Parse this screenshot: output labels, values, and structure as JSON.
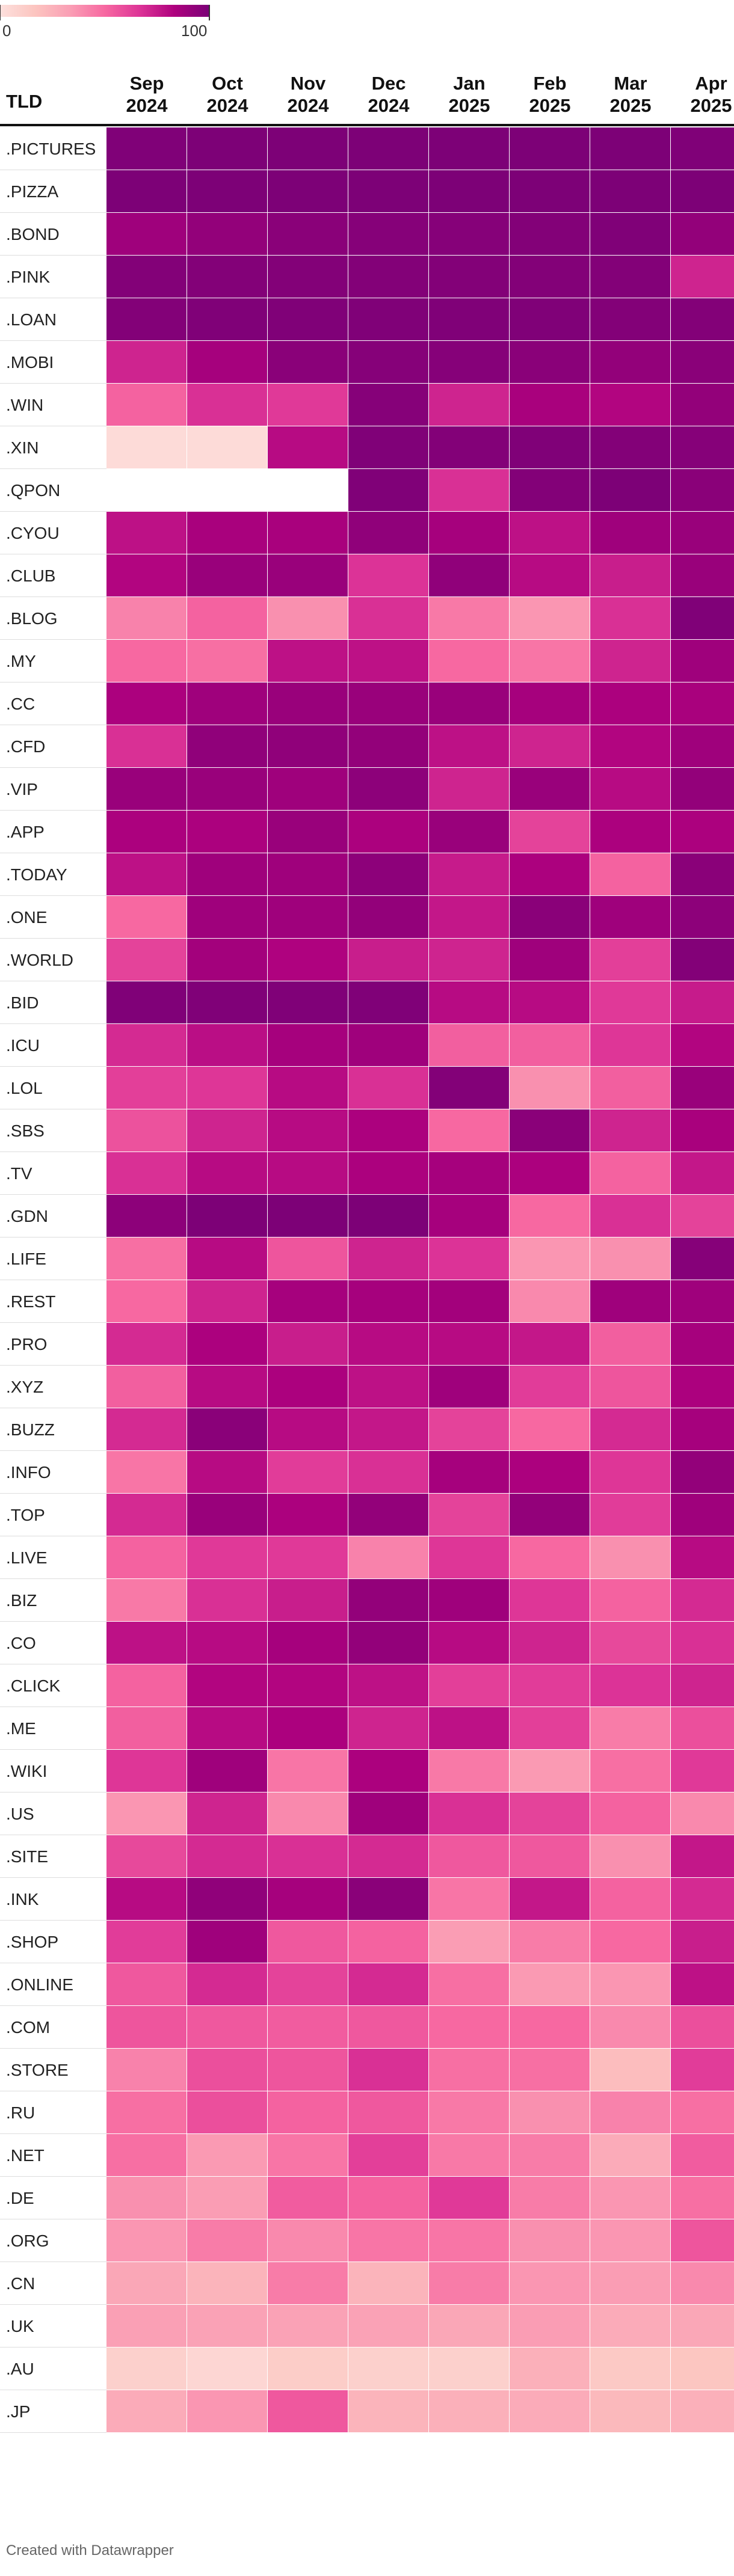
{
  "chart_data": {
    "type": "heatmap",
    "row_header": "TLD",
    "x": [
      "Sep 2024",
      "Oct 2024",
      "Nov 2024",
      "Dec 2024",
      "Jan 2025",
      "Feb 2025",
      "Mar 2025",
      "Apr 2025"
    ],
    "categories": [
      ".PICTURES",
      ".PIZZA",
      ".BOND",
      ".PINK",
      ".LOAN",
      ".MOBI",
      ".WIN",
      ".XIN",
      ".QPON",
      ".CYOU",
      ".CLUB",
      ".BLOG",
      ".MY",
      ".CC",
      ".CFD",
      ".VIP",
      ".APP",
      ".TODAY",
      ".ONE",
      ".WORLD",
      ".BID",
      ".ICU",
      ".LOL",
      ".SBS",
      ".TV",
      ".GDN",
      ".LIFE",
      ".REST",
      ".PRO",
      ".XYZ",
      ".BUZZ",
      ".INFO",
      ".TOP",
      ".LIVE",
      ".BIZ",
      ".CO",
      ".CLICK",
      ".ME",
      ".WIKI",
      ".US",
      ".SITE",
      ".INK",
      ".SHOP",
      ".ONLINE",
      ".COM",
      ".STORE",
      ".RU",
      ".NET",
      ".DE",
      ".ORG",
      ".CN",
      ".UK",
      ".AU",
      ".JP"
    ],
    "values": [
      [
        98,
        99,
        99,
        99,
        99,
        99,
        99,
        98
      ],
      [
        99,
        99,
        99,
        99,
        99,
        99,
        99,
        99
      ],
      [
        88,
        92,
        95,
        96,
        96,
        97,
        98,
        92
      ],
      [
        97,
        97,
        97,
        97,
        97,
        97,
        97,
        72
      ],
      [
        97,
        98,
        98,
        98,
        98,
        98,
        97,
        97
      ],
      [
        72,
        86,
        95,
        96,
        96,
        95,
        92,
        95
      ],
      [
        52,
        68,
        65,
        96,
        72,
        85,
        82,
        92
      ],
      [
        3,
        3,
        80,
        98,
        97,
        98,
        97,
        96
      ],
      [
        null,
        null,
        null,
        98,
        68,
        97,
        99,
        95
      ],
      [
        78,
        85,
        85,
        93,
        86,
        78,
        88,
        90
      ],
      [
        82,
        90,
        90,
        67,
        93,
        80,
        74,
        90
      ],
      [
        42,
        52,
        38,
        68,
        45,
        36,
        68,
        98
      ],
      [
        50,
        48,
        78,
        78,
        50,
        46,
        72,
        88
      ],
      [
        84,
        88,
        90,
        90,
        90,
        86,
        84,
        85
      ],
      [
        68,
        93,
        93,
        92,
        78,
        72,
        82,
        88
      ],
      [
        90,
        90,
        88,
        94,
        72,
        90,
        80,
        92
      ],
      [
        84,
        84,
        90,
        84,
        90,
        62,
        84,
        84
      ],
      [
        78,
        88,
        88,
        94,
        75,
        84,
        52,
        95
      ],
      [
        50,
        88,
        88,
        92,
        76,
        95,
        88,
        94
      ],
      [
        62,
        87,
        83,
        74,
        72,
        88,
        63,
        97
      ],
      [
        98,
        98,
        98,
        98,
        80,
        80,
        65,
        75
      ],
      [
        70,
        79,
        86,
        88,
        53,
        53,
        66,
        82
      ],
      [
        63,
        66,
        80,
        68,
        97,
        38,
        53,
        90
      ],
      [
        57,
        72,
        80,
        84,
        50,
        95,
        72,
        85
      ],
      [
        68,
        80,
        80,
        84,
        86,
        84,
        52,
        76
      ],
      [
        94,
        99,
        99,
        99,
        86,
        50,
        68,
        62
      ],
      [
        48,
        80,
        56,
        72,
        67,
        36,
        38,
        96
      ],
      [
        50,
        72,
        86,
        86,
        87,
        40,
        88,
        88
      ],
      [
        70,
        84,
        74,
        80,
        80,
        76,
        53,
        86
      ],
      [
        53,
        80,
        84,
        78,
        88,
        64,
        56,
        84
      ],
      [
        70,
        95,
        80,
        76,
        62,
        50,
        70,
        86
      ],
      [
        46,
        80,
        64,
        68,
        86,
        84,
        66,
        92
      ],
      [
        70,
        90,
        84,
        92,
        62,
        92,
        64,
        88
      ],
      [
        52,
        65,
        65,
        42,
        66,
        50,
        38,
        80
      ],
      [
        45,
        68,
        74,
        92,
        88,
        66,
        52,
        70
      ],
      [
        78,
        80,
        86,
        92,
        80,
        72,
        60,
        68
      ],
      [
        52,
        82,
        82,
        78,
        63,
        64,
        67,
        72
      ],
      [
        53,
        80,
        84,
        72,
        78,
        63,
        44,
        58
      ],
      [
        66,
        88,
        46,
        84,
        45,
        35,
        48,
        65
      ],
      [
        36,
        72,
        40,
        88,
        68,
        62,
        52,
        40
      ],
      [
        60,
        70,
        68,
        70,
        55,
        55,
        38,
        76
      ],
      [
        80,
        93,
        86,
        95,
        46,
        76,
        52,
        70
      ],
      [
        64,
        88,
        55,
        52,
        34,
        44,
        50,
        74
      ],
      [
        55,
        70,
        62,
        70,
        48,
        35,
        36,
        78
      ],
      [
        56,
        55,
        54,
        55,
        50,
        50,
        40,
        58
      ],
      [
        42,
        58,
        56,
        68,
        48,
        48,
        20,
        64
      ],
      [
        48,
        58,
        52,
        55,
        45,
        38,
        42,
        48
      ],
      [
        48,
        35,
        46,
        63,
        45,
        44,
        28,
        54
      ],
      [
        38,
        34,
        54,
        52,
        65,
        44,
        36,
        48
      ],
      [
        36,
        44,
        40,
        46,
        46,
        38,
        36,
        56
      ],
      [
        30,
        24,
        44,
        24,
        44,
        36,
        34,
        40
      ],
      [
        33,
        32,
        32,
        32,
        30,
        34,
        28,
        30
      ],
      [
        10,
        6,
        12,
        10,
        10,
        26,
        14,
        16
      ],
      [
        28,
        36,
        55,
        24,
        26,
        28,
        22,
        26
      ]
    ],
    "zlim": [
      0,
      100
    ],
    "zticks": [
      0,
      100
    ],
    "colorscale": [
      "#fde0dd",
      "#fcc5c0",
      "#fa9fb5",
      "#f768a1",
      "#dd3497",
      "#ae017e",
      "#7a0177"
    ]
  },
  "footer": "Created with Datawrapper"
}
